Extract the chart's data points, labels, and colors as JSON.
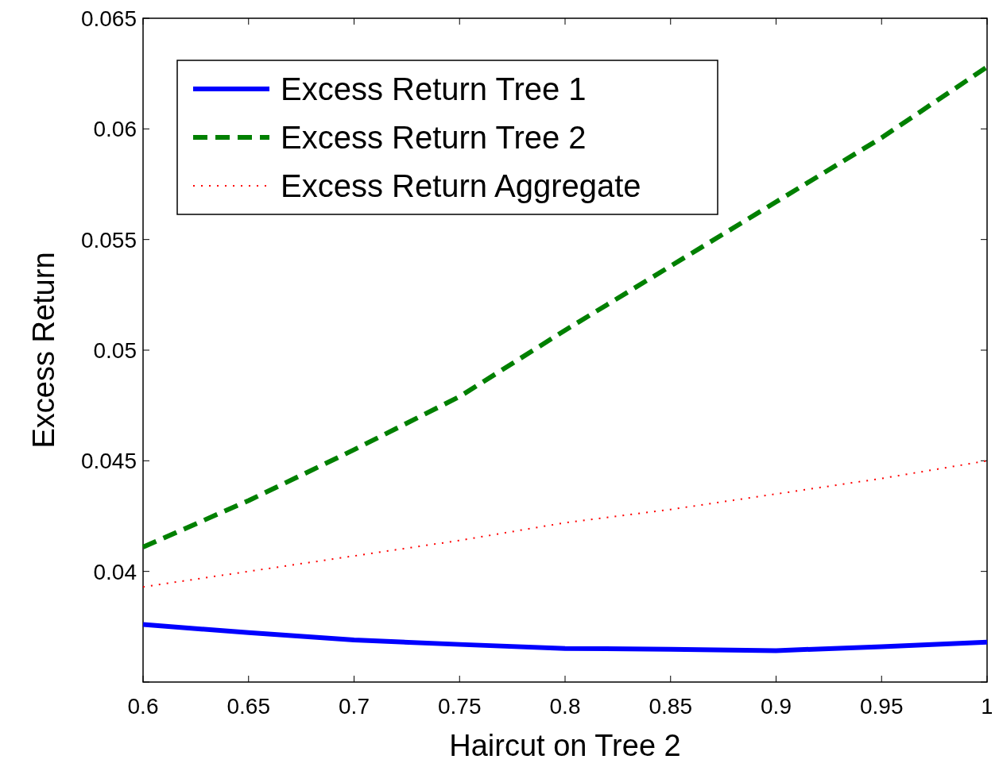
{
  "chart_data": {
    "type": "line",
    "xlabel": "Haircut on Tree 2",
    "ylabel": "Excess Return",
    "x": [
      0.6,
      0.65,
      0.7,
      0.75,
      0.8,
      0.85,
      0.9,
      0.95,
      1
    ],
    "series": [
      {
        "name": "Excess Return Tree 1",
        "color": "#0000ff",
        "line_style": "solid",
        "values": [
          0.0376,
          0.03723,
          0.0369,
          0.0367,
          0.03652,
          0.03648,
          0.03642,
          0.0366,
          0.0368
        ]
      },
      {
        "name": "Excess Return Tree 2",
        "color": "#008000",
        "line_style": "dashed",
        "values": [
          0.0411,
          0.0432,
          0.0455,
          0.0479,
          0.0509,
          0.0538,
          0.0567,
          0.0596,
          0.0628
        ]
      },
      {
        "name": "Excess Return Aggregate",
        "color": "#ff0000",
        "line_style": "dotted",
        "values": [
          0.0393,
          0.04,
          0.0407,
          0.0414,
          0.0422,
          0.0428,
          0.0435,
          0.0442,
          0.045
        ]
      }
    ],
    "xlim": [
      0.6,
      1
    ],
    "xticks": [
      0.6,
      0.65,
      0.7,
      0.75,
      0.8,
      0.85,
      0.9,
      0.95,
      1
    ],
    "ylim": [
      0.035,
      0.065
    ],
    "yticks": [
      {
        "value": 0.035,
        "label": null
      },
      0.04,
      0.045,
      0.05,
      0.055,
      0.06,
      0.065
    ],
    "legend": "top left",
    "grid": false
  }
}
